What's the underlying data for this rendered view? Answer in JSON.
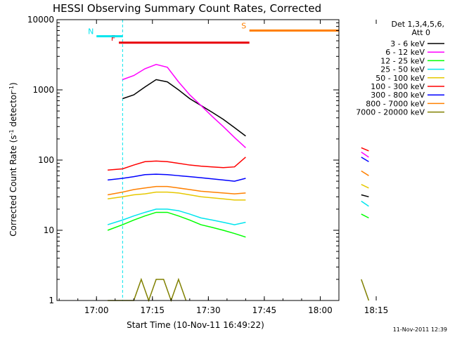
{
  "chart_data": {
    "type": "line",
    "title": "HESSI Observing Summary Count Rates, Corrected",
    "xlabel": "Start Time (10-Nov-11 16:49:22)",
    "ylabel": "Corrected Count Rate (s⁻¹ detector⁻¹)",
    "yscale": "log",
    "ylim": [
      1,
      10000
    ],
    "xlim_minutes_after_1700": [
      -10.6,
      65
    ],
    "x_ticks": [
      "17:00",
      "17:15",
      "17:30",
      "17:45",
      "18:00",
      "18:15"
    ],
    "y_ticks": [
      "1",
      "10",
      "100",
      "1000",
      "10000"
    ],
    "legend_title": [
      "Det 1,3,4,5,6,",
      "Att 0"
    ],
    "timestamp": "11-Nov-2011 12:39",
    "flags": [
      {
        "label": "F",
        "color": "#e8000b",
        "start": "17:06",
        "end": "17:41",
        "level": 4700
      },
      {
        "label": "N",
        "color": "#00e5ee",
        "start": "17:00",
        "end": "17:07",
        "level": 5800
      },
      {
        "label": "S",
        "color": "#ff8000",
        "start": "17:41",
        "end": "18:10",
        "level": 7000
      }
    ],
    "saa_periods": [
      [
        "16:49",
        "17:07"
      ],
      [
        "18:11",
        "18:22"
      ]
    ],
    "series": [
      {
        "name": "3 - 6 keV",
        "color": "#000000",
        "x": [
          "17:07",
          "17:10",
          "17:13",
          "17:16",
          "17:19",
          "17:22",
          "17:25",
          "17:28",
          "17:31",
          "17:34",
          "17:37",
          "17:40",
          "18:11",
          "18:13"
        ],
        "y": [
          750,
          850,
          1100,
          1400,
          1300,
          1000,
          750,
          600,
          480,
          380,
          290,
          220,
          32,
          30
        ]
      },
      {
        "name": "6 - 12 keV",
        "color": "#ff00ff",
        "x": [
          "17:07",
          "17:10",
          "17:13",
          "17:16",
          "17:19",
          "17:22",
          "17:25",
          "17:28",
          "17:31",
          "17:34",
          "17:37",
          "17:40",
          "18:11",
          "18:13"
        ],
        "y": [
          1400,
          1600,
          2000,
          2300,
          2100,
          1300,
          850,
          600,
          420,
          300,
          210,
          150,
          130,
          110
        ]
      },
      {
        "name": "12 - 25 keV",
        "color": "#00ff00",
        "x": [
          "17:03",
          "17:07",
          "17:10",
          "17:13",
          "17:16",
          "17:19",
          "17:22",
          "17:25",
          "17:28",
          "17:31",
          "17:34",
          "17:37",
          "17:40",
          "18:11",
          "18:13"
        ],
        "y": [
          10,
          12,
          14,
          16,
          18,
          18,
          16,
          14,
          12,
          11,
          10,
          9,
          8,
          17,
          15
        ]
      },
      {
        "name": "25 - 50 keV",
        "color": "#00e5ee",
        "x": [
          "17:03",
          "17:07",
          "17:10",
          "17:13",
          "17:16",
          "17:19",
          "17:22",
          "17:25",
          "17:28",
          "17:31",
          "17:34",
          "17:37",
          "17:40",
          "18:11",
          "18:13"
        ],
        "y": [
          12,
          14,
          16,
          18,
          20,
          20,
          19,
          17,
          15,
          14,
          13,
          12,
          13,
          26,
          22
        ]
      },
      {
        "name": "50 - 100 keV",
        "color": "#e6c800",
        "x": [
          "17:03",
          "17:07",
          "17:10",
          "17:13",
          "17:16",
          "17:19",
          "17:22",
          "17:25",
          "17:28",
          "17:31",
          "17:34",
          "17:37",
          "17:40",
          "18:11",
          "18:13"
        ],
        "y": [
          28,
          30,
          32,
          33,
          35,
          35,
          34,
          32,
          30,
          29,
          28,
          27,
          27,
          45,
          40
        ]
      },
      {
        "name": "100 - 300 keV",
        "color": "#ff0000",
        "x": [
          "17:03",
          "17:07",
          "17:10",
          "17:13",
          "17:16",
          "17:19",
          "17:22",
          "17:25",
          "17:28",
          "17:31",
          "17:34",
          "17:37",
          "17:40",
          "18:11",
          "18:13"
        ],
        "y": [
          72,
          75,
          85,
          95,
          97,
          95,
          90,
          85,
          82,
          80,
          78,
          80,
          110,
          150,
          135
        ]
      },
      {
        "name": "300 - 800 keV",
        "color": "#0000ff",
        "x": [
          "17:03",
          "17:07",
          "17:10",
          "17:13",
          "17:16",
          "17:19",
          "17:22",
          "17:25",
          "17:28",
          "17:31",
          "17:34",
          "17:37",
          "17:40",
          "18:11",
          "18:13"
        ],
        "y": [
          52,
          55,
          58,
          62,
          63,
          62,
          60,
          58,
          56,
          54,
          52,
          50,
          55,
          110,
          95
        ]
      },
      {
        "name": "800 - 7000 keV",
        "color": "#ff8000",
        "x": [
          "17:03",
          "17:07",
          "17:10",
          "17:13",
          "17:16",
          "17:19",
          "17:22",
          "17:25",
          "17:28",
          "17:31",
          "17:34",
          "17:37",
          "17:40",
          "18:11",
          "18:13"
        ],
        "y": [
          32,
          35,
          38,
          40,
          42,
          42,
          40,
          38,
          36,
          35,
          34,
          33,
          34,
          70,
          60
        ]
      },
      {
        "name": "7000 - 20000 keV",
        "color": "#808000",
        "x": [
          "17:03",
          "17:10",
          "17:12",
          "17:14",
          "17:16",
          "17:18",
          "17:20",
          "17:22",
          "17:24",
          "18:11",
          "18:13"
        ],
        "y": [
          1,
          1,
          2,
          1,
          2,
          2,
          1,
          2,
          1,
          2,
          1
        ]
      }
    ]
  }
}
